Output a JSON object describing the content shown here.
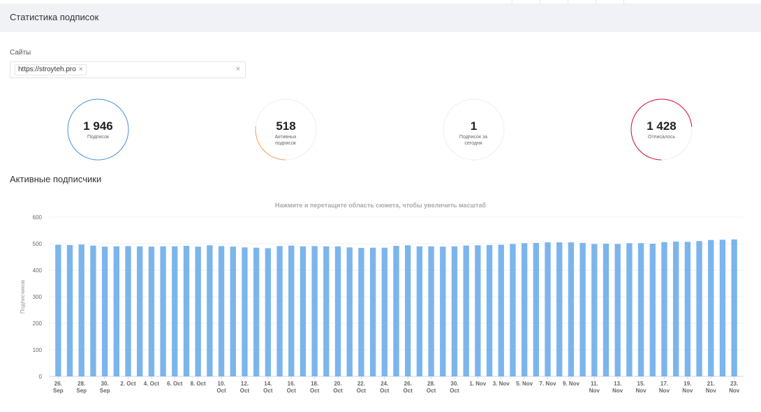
{
  "header": {
    "title": "Статистика подписок"
  },
  "filter": {
    "label": "Сайты",
    "tag": "https://stroyteh.pro",
    "tag_remove": "×",
    "clear": "×"
  },
  "stats": [
    {
      "value": "1 946",
      "label": "Подписок",
      "color": "#4a90d9",
      "fraction": 1.0
    },
    {
      "value": "518",
      "label": "Активных подписок",
      "color": "#f0a050",
      "fraction": 0.266
    },
    {
      "value": "1",
      "label": "Подписок за сегодня",
      "color": "#4a90d9",
      "fraction": 0.0005
    },
    {
      "value": "1 428",
      "label": "Отписалось",
      "color": "#c8102e",
      "fraction": 0.734
    }
  ],
  "section_title": "Активные подписчики",
  "chart_data": {
    "type": "bar",
    "subtitle": "Нажмите и перетащите область сюжета, чтобы увеличить масштаб",
    "ylabel": "Подписчиков",
    "ylim": [
      0,
      600
    ],
    "yticks": [
      0,
      100,
      200,
      300,
      400,
      500,
      600
    ],
    "bar_color": "#7cb5ec",
    "tick_labels": [
      {
        "i": 0,
        "l1": "26.",
        "l2": "Sep"
      },
      {
        "i": 2,
        "l1": "28.",
        "l2": "Sep"
      },
      {
        "i": 4,
        "l1": "30.",
        "l2": "Sep"
      },
      {
        "i": 6,
        "l1": "2. Oct",
        "l2": ""
      },
      {
        "i": 8,
        "l1": "4. Oct",
        "l2": ""
      },
      {
        "i": 10,
        "l1": "6. Oct",
        "l2": ""
      },
      {
        "i": 12,
        "l1": "8. Oct",
        "l2": ""
      },
      {
        "i": 14,
        "l1": "10.",
        "l2": "Oct"
      },
      {
        "i": 16,
        "l1": "12.",
        "l2": "Oct"
      },
      {
        "i": 18,
        "l1": "14.",
        "l2": "Oct"
      },
      {
        "i": 20,
        "l1": "16.",
        "l2": "Oct"
      },
      {
        "i": 22,
        "l1": "18.",
        "l2": "Oct"
      },
      {
        "i": 24,
        "l1": "20.",
        "l2": "Oct"
      },
      {
        "i": 26,
        "l1": "22.",
        "l2": "Oct"
      },
      {
        "i": 28,
        "l1": "24.",
        "l2": "Oct"
      },
      {
        "i": 30,
        "l1": "26.",
        "l2": "Oct"
      },
      {
        "i": 32,
        "l1": "28.",
        "l2": "Oct"
      },
      {
        "i": 34,
        "l1": "30.",
        "l2": "Oct"
      },
      {
        "i": 36,
        "l1": "1. Nov",
        "l2": ""
      },
      {
        "i": 38,
        "l1": "3. Nov",
        "l2": ""
      },
      {
        "i": 40,
        "l1": "5. Nov",
        "l2": ""
      },
      {
        "i": 42,
        "l1": "7. Nov",
        "l2": ""
      },
      {
        "i": 44,
        "l1": "9. Nov",
        "l2": ""
      },
      {
        "i": 46,
        "l1": "11.",
        "l2": "Nov"
      },
      {
        "i": 48,
        "l1": "13.",
        "l2": "Nov"
      },
      {
        "i": 50,
        "l1": "15.",
        "l2": "Nov"
      },
      {
        "i": 52,
        "l1": "17.",
        "l2": "Nov"
      },
      {
        "i": 54,
        "l1": "19.",
        "l2": "Nov"
      },
      {
        "i": 56,
        "l1": "21.",
        "l2": "Nov"
      },
      {
        "i": 58,
        "l1": "23.",
        "l2": "Nov"
      }
    ],
    "values": [
      496,
      495,
      497,
      493,
      489,
      490,
      491,
      490,
      489,
      490,
      490,
      492,
      489,
      494,
      491,
      489,
      486,
      485,
      483,
      491,
      493,
      490,
      491,
      490,
      490,
      486,
      484,
      485,
      485,
      492,
      494,
      490,
      490,
      489,
      490,
      493,
      494,
      495,
      496,
      499,
      502,
      503,
      505,
      505,
      505,
      503,
      499,
      500,
      499,
      502,
      502,
      500,
      506,
      508,
      507,
      510,
      514,
      515,
      516
    ]
  }
}
